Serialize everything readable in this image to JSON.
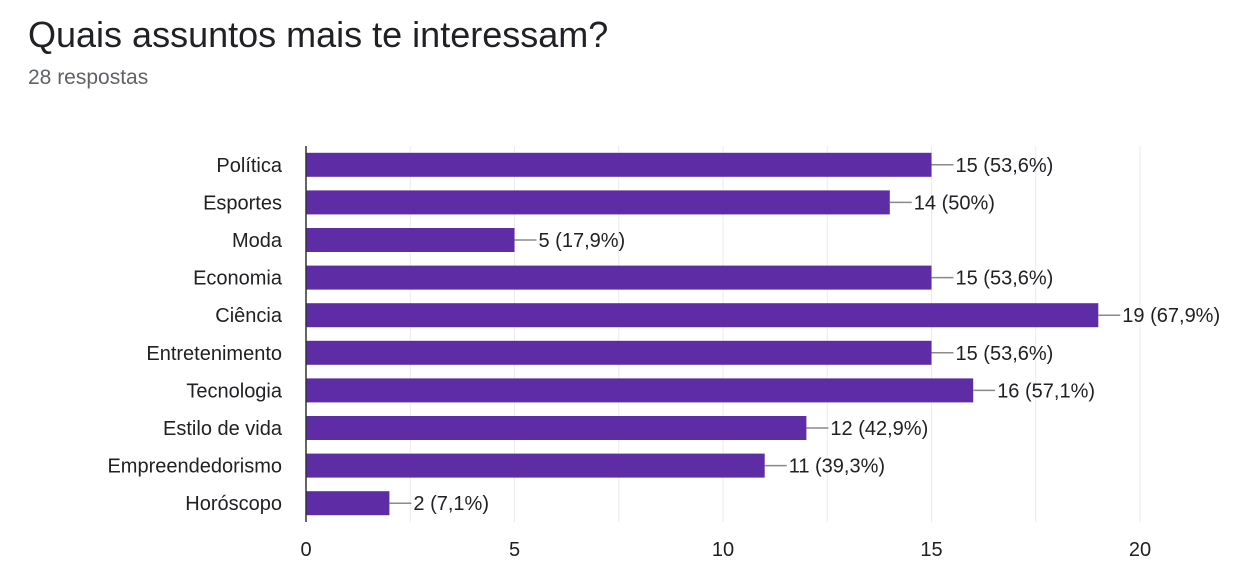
{
  "header": {
    "title": "Quais assuntos mais te interessam?",
    "subtitle": "28 respostas"
  },
  "chart_data": {
    "type": "bar",
    "orientation": "horizontal",
    "categories": [
      "Política",
      "Esportes",
      "Moda",
      "Economia",
      "Ciência",
      "Entretenimento",
      "Tecnologia",
      "Estilo de vida",
      "Empreendedorismo",
      "Horóscopo"
    ],
    "values": [
      15,
      14,
      5,
      15,
      19,
      15,
      16,
      12,
      11,
      2
    ],
    "data_labels": [
      "15 (53,6%)",
      "14 (50%)",
      "5 (17,9%)",
      "15 (53,6%)",
      "19 (67,9%)",
      "15 (53,6%)",
      "16 (57,1%)",
      "12 (42,9%)",
      "11 (39,3%)",
      "2 (7,1%)"
    ],
    "xlim": [
      0,
      20
    ],
    "xticks": [
      "0",
      "5",
      "10",
      "15",
      "20"
    ],
    "grid": true,
    "bar_color": "#5e2ca5",
    "grid_color": "#ebebeb",
    "axis_color": "#333333"
  }
}
